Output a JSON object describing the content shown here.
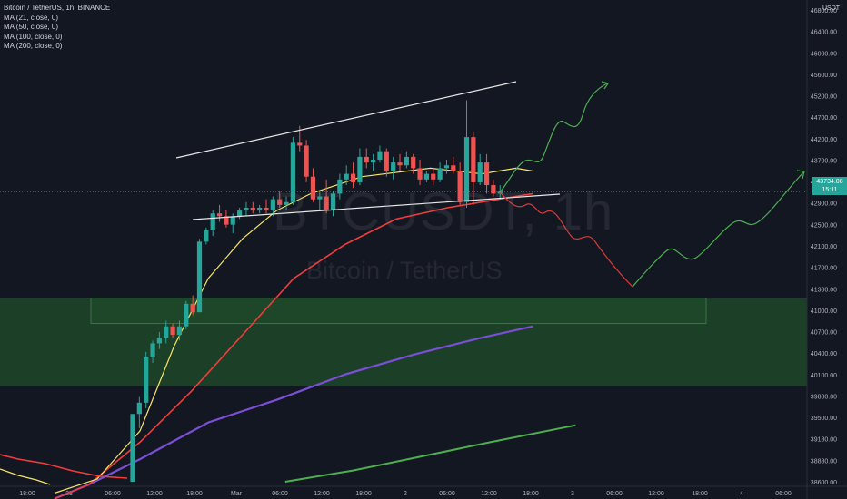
{
  "legend": {
    "symbol": "Bitcoin / TetherUS, 1h, BINANCE",
    "indicators": [
      "MA (21, close, 0)",
      "MA (50, close, 0)",
      "MA (100, close, 0)",
      "MA (200, close, 0)"
    ]
  },
  "watermark": {
    "symbol": "BTCUSDT, 1h",
    "name": "Bitcoin / TetherUS"
  },
  "axis_unit": "USDT",
  "last_price": {
    "value": "43734.08",
    "countdown": "15:11"
  },
  "colors": {
    "background": "#131722",
    "up": "#26a69a",
    "down": "#ef5350",
    "ma21": "#f5e663",
    "ma50": "#f23c3c",
    "ma100": "#7a4fd6",
    "ma200": "#4caf50",
    "zone": "#1f4d2a",
    "projection_up": "#4caf50",
    "projection_down": "#d93a36"
  },
  "chart_data": {
    "type": "candlestick",
    "yticks": [
      "46800.00",
      "46400.00",
      "46000.00",
      "45600.00",
      "45200.00",
      "44700.00",
      "44200.00",
      "43700.00",
      "43300.00",
      "42900.00",
      "42500.00",
      "42100.00",
      "41700.00",
      "41300.00",
      "41000.00",
      "40700.00",
      "40400.00",
      "40100.00",
      "39800.00",
      "39500.00",
      "39180.00",
      "38880.00",
      "38600.00"
    ],
    "xticks": [
      "18:00",
      "28",
      "06:00",
      "12:00",
      "18:00",
      "Mar",
      "06:00",
      "12:00",
      "18:00",
      "2",
      "06:00",
      "12:00",
      "18:00",
      "3",
      "06:00",
      "12:00",
      "18:00",
      "4",
      "06:00"
    ],
    "candles": [
      [
        38600,
        39800,
        38600,
        39800
      ],
      [
        39800,
        40100,
        39550,
        40000
      ],
      [
        40000,
        40900,
        39900,
        40800
      ],
      [
        40800,
        41100,
        40700,
        41050
      ],
      [
        41050,
        41250,
        40950,
        41150
      ],
      [
        41150,
        41450,
        41050,
        41350
      ],
      [
        41350,
        41400,
        41150,
        41200
      ],
      [
        41200,
        41450,
        41100,
        41350
      ],
      [
        41350,
        41800,
        41300,
        41750
      ],
      [
        41750,
        41900,
        41550,
        41600
      ],
      [
        41600,
        42900,
        41600,
        42850
      ],
      [
        42850,
        43100,
        42800,
        43050
      ],
      [
        43050,
        43400,
        42950,
        43350
      ],
      [
        43350,
        43500,
        43200,
        43300
      ],
      [
        43300,
        43400,
        43100,
        43150
      ],
      [
        43150,
        43350,
        43000,
        43300
      ],
      [
        43300,
        43450,
        43250,
        43400
      ],
      [
        43400,
        43550,
        43300,
        43450
      ],
      [
        43450,
        43550,
        43350,
        43400
      ],
      [
        43400,
        43500,
        43350,
        43450
      ],
      [
        43450,
        43600,
        43350,
        43400
      ],
      [
        43400,
        43650,
        43300,
        43600
      ],
      [
        43600,
        43750,
        43450,
        43500
      ],
      [
        43500,
        43650,
        43400,
        43550
      ],
      [
        43550,
        44700,
        43500,
        44600
      ],
      [
        44600,
        44900,
        44450,
        44550
      ],
      [
        44550,
        44650,
        43900,
        44000
      ],
      [
        44000,
        44150,
        43550,
        43600
      ],
      [
        43600,
        43750,
        43400,
        43650
      ],
      [
        43650,
        43950,
        43350,
        43400
      ],
      [
        43400,
        43750,
        43300,
        43700
      ],
      [
        43700,
        44050,
        43600,
        43950
      ],
      [
        43950,
        44200,
        43850,
        44050
      ],
      [
        44050,
        44250,
        43800,
        43900
      ],
      [
        43900,
        44500,
        43850,
        44350
      ],
      [
        44350,
        44500,
        44150,
        44250
      ],
      [
        44250,
        44400,
        44100,
        44300
      ],
      [
        44300,
        44550,
        44250,
        44450
      ],
      [
        44450,
        44500,
        44000,
        44100
      ],
      [
        44100,
        44350,
        43950,
        44250
      ],
      [
        44250,
        44400,
        44100,
        44200
      ],
      [
        44200,
        44450,
        44150,
        44350
      ],
      [
        44350,
        44400,
        44050,
        44150
      ],
      [
        44150,
        44300,
        43850,
        43950
      ],
      [
        43950,
        44100,
        43900,
        44050
      ],
      [
        44050,
        44150,
        43850,
        43950
      ],
      [
        43950,
        44250,
        43900,
        44150
      ],
      [
        44150,
        44300,
        44050,
        44200
      ],
      [
        44200,
        44350,
        44050,
        44100
      ],
      [
        44100,
        44250,
        43500,
        43550
      ],
      [
        43550,
        45350,
        43450,
        44700
      ],
      [
        44700,
        44800,
        43500,
        43900
      ],
      [
        43900,
        44400,
        43850,
        44250
      ],
      [
        44250,
        44400,
        43700,
        43850
      ],
      [
        43850,
        43950,
        43650,
        43700
      ],
      [
        43700,
        43850,
        43600,
        43734
      ]
    ],
    "ma21": [
      [
        0,
        38400
      ],
      [
        5,
        38650
      ],
      [
        10,
        39500
      ],
      [
        14,
        41000
      ],
      [
        18,
        42200
      ],
      [
        22,
        42900
      ],
      [
        26,
        43400
      ],
      [
        30,
        43700
      ],
      [
        36,
        44000
      ],
      [
        44,
        44150
      ],
      [
        50,
        44050
      ],
      [
        54,
        44150
      ],
      [
        56,
        44100
      ]
    ],
    "ma50": [
      [
        0,
        38300
      ],
      [
        4,
        38550
      ],
      [
        10,
        39300
      ],
      [
        16,
        40200
      ],
      [
        22,
        41200
      ],
      [
        28,
        42200
      ],
      [
        34,
        42800
      ],
      [
        40,
        43250
      ],
      [
        46,
        43450
      ],
      [
        50,
        43550
      ],
      [
        54,
        43650
      ],
      [
        56,
        43700
      ]
    ],
    "ma100": [
      [
        0,
        38300
      ],
      [
        4,
        38550
      ],
      [
        10,
        39000
      ],
      [
        18,
        39650
      ],
      [
        26,
        40050
      ],
      [
        34,
        40500
      ],
      [
        42,
        40850
      ],
      [
        50,
        41150
      ],
      [
        56,
        41350
      ]
    ],
    "ma200": [
      [
        22,
        38600
      ],
      [
        30,
        38800
      ],
      [
        38,
        39050
      ],
      [
        46,
        39300
      ],
      [
        56,
        39600
      ]
    ],
    "trendlines": [
      [
        [
          6,
          44300
        ],
        [
          56,
          45550
        ]
      ],
      [
        [
          6,
          43000
        ],
        [
          66,
          43400
        ]
      ]
    ],
    "zones": [
      {
        "from": 0,
        "to": 93,
        "top": 41850,
        "bottom": 40300
      },
      {
        "from": 0,
        "to": 77,
        "top": 41850,
        "bottom": 41400
      }
    ],
    "projection_down": [
      [
        55,
        43700
      ],
      [
        58,
        43450
      ],
      [
        61,
        43200
      ],
      [
        64,
        42850
      ],
      [
        66,
        42500
      ],
      [
        69,
        42000
      ],
      [
        71,
        41850
      ]
    ],
    "projection_up": [
      [
        55,
        43700
      ],
      [
        57,
        44050
      ],
      [
        60,
        44400
      ],
      [
        62,
        44900
      ],
      [
        64,
        45450
      ],
      [
        66,
        45600
      ],
      [
        69,
        41850
      ],
      [
        72,
        42200
      ],
      [
        76,
        42400
      ],
      [
        80,
        42850
      ],
      [
        84,
        43000
      ],
      [
        87,
        43450
      ],
      [
        89,
        43850
      ]
    ],
    "ylim": [
      38600,
      46950
    ]
  }
}
